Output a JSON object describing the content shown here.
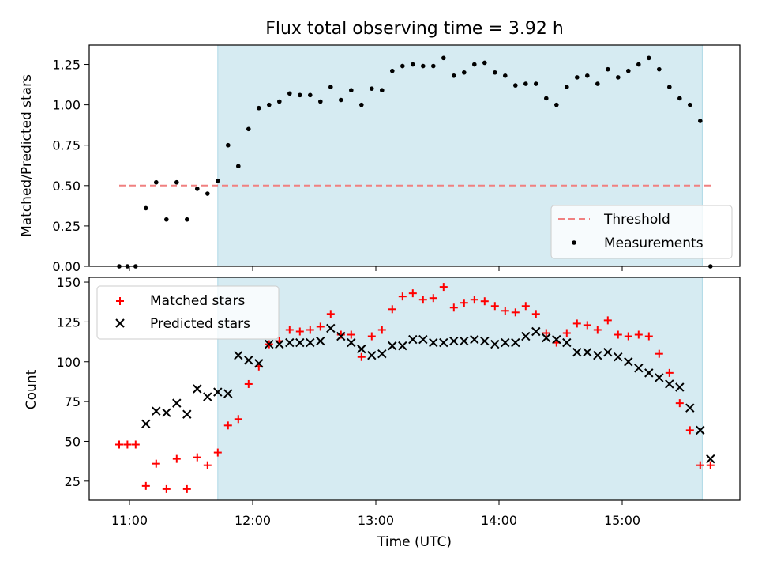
{
  "chart_data": [
    {
      "type": "scatter",
      "title": "Flux total observing time = 3.92 h",
      "xlabel": "",
      "ylabel": "Matched/Predicted stars",
      "ylim": [
        0,
        1.37
      ],
      "yticks": [
        "0.00",
        "0.25",
        "0.50",
        "0.75",
        "1.00",
        "1.25"
      ],
      "legend_position": "lower-right",
      "shaded_interval": [
        "11:43",
        "15:39"
      ],
      "threshold": {
        "name": "Threshold",
        "value": 0.5,
        "x_start": "10:55",
        "x_end": "15:45",
        "color": "#f08080"
      },
      "series": [
        {
          "name": "Measurements",
          "color": "#000000",
          "x": [
            "10:55",
            "10:59",
            "11:03",
            "11:08",
            "11:13",
            "11:18",
            "11:23",
            "11:28",
            "11:33",
            "11:38",
            "11:43",
            "11:48",
            "11:53",
            "11:58",
            "12:03",
            "12:08",
            "12:13",
            "12:18",
            "12:23",
            "12:28",
            "12:33",
            "12:38",
            "12:43",
            "12:48",
            "12:53",
            "12:58",
            "13:03",
            "13:08",
            "13:13",
            "13:18",
            "13:23",
            "13:28",
            "13:33",
            "13:38",
            "13:43",
            "13:48",
            "13:53",
            "13:58",
            "14:03",
            "14:08",
            "14:13",
            "14:18",
            "14:23",
            "14:28",
            "14:33",
            "14:38",
            "14:43",
            "14:48",
            "14:53",
            "14:58",
            "15:03",
            "15:08",
            "15:13",
            "15:18",
            "15:23",
            "15:28",
            "15:33",
            "15:38",
            "15:43"
          ],
          "y": [
            0.0,
            0.0,
            0.0,
            0.36,
            0.52,
            0.29,
            0.52,
            0.29,
            0.48,
            0.45,
            0.53,
            0.75,
            0.62,
            0.85,
            0.98,
            1.0,
            1.02,
            1.07,
            1.06,
            1.06,
            1.02,
            1.11,
            1.03,
            1.09,
            1.0,
            1.1,
            1.09,
            1.21,
            1.24,
            1.25,
            1.24,
            1.24,
            1.29,
            1.18,
            1.2,
            1.25,
            1.26,
            1.2,
            1.18,
            1.12,
            1.13,
            1.13,
            1.04,
            1.0,
            1.11,
            1.17,
            1.18,
            1.13,
            1.22,
            1.17,
            1.21,
            1.25,
            1.29,
            1.22,
            1.11,
            1.04,
            1.0,
            0.9,
            0.0
          ]
        }
      ]
    },
    {
      "type": "scatter",
      "title": "",
      "xlabel": "Time (UTC)",
      "ylabel": "Count",
      "ylim": [
        13,
        153
      ],
      "yticks": [
        "25",
        "50",
        "75",
        "100",
        "125",
        "150"
      ],
      "xticks": [
        "11:00",
        "12:00",
        "13:00",
        "14:00",
        "15:00"
      ],
      "legend_position": "upper-left",
      "shaded_interval": [
        "11:43",
        "15:39"
      ],
      "series": [
        {
          "name": "Matched stars",
          "marker": "plus",
          "color": "#ff0000",
          "x": [
            "10:55",
            "10:59",
            "11:03",
            "11:08",
            "11:13",
            "11:18",
            "11:23",
            "11:28",
            "11:33",
            "11:38",
            "11:43",
            "11:48",
            "11:53",
            "11:58",
            "12:03",
            "12:08",
            "12:13",
            "12:18",
            "12:23",
            "12:28",
            "12:33",
            "12:38",
            "12:43",
            "12:48",
            "12:53",
            "12:58",
            "13:03",
            "13:08",
            "13:13",
            "13:18",
            "13:23",
            "13:28",
            "13:33",
            "13:38",
            "13:43",
            "13:48",
            "13:53",
            "13:58",
            "14:03",
            "14:08",
            "14:13",
            "14:18",
            "14:23",
            "14:28",
            "14:33",
            "14:38",
            "14:43",
            "14:48",
            "14:53",
            "14:58",
            "15:03",
            "15:08",
            "15:13",
            "15:18",
            "15:23",
            "15:28",
            "15:33",
            "15:38",
            "15:43"
          ],
          "y": [
            48,
            48,
            48,
            22,
            36,
            20,
            39,
            20,
            40,
            35,
            43,
            60,
            64,
            86,
            97,
            111,
            113,
            120,
            119,
            120,
            122,
            130,
            117,
            117,
            103,
            116,
            120,
            133,
            141,
            143,
            139,
            140,
            147,
            134,
            137,
            139,
            138,
            135,
            132,
            131,
            135,
            130,
            118,
            112,
            118,
            124,
            123,
            120,
            126,
            117,
            116,
            117,
            116,
            105,
            93,
            74,
            57,
            35,
            35
          ]
        },
        {
          "name": "Predicted stars",
          "marker": "x",
          "color": "#000000",
          "x": [
            "11:08",
            "11:13",
            "11:18",
            "11:23",
            "11:28",
            "11:33",
            "11:38",
            "11:43",
            "11:48",
            "11:53",
            "11:58",
            "12:03",
            "12:08",
            "12:13",
            "12:18",
            "12:23",
            "12:28",
            "12:33",
            "12:38",
            "12:43",
            "12:48",
            "12:53",
            "12:58",
            "13:03",
            "13:08",
            "13:13",
            "13:18",
            "13:23",
            "13:28",
            "13:33",
            "13:38",
            "13:43",
            "13:48",
            "13:53",
            "13:58",
            "14:03",
            "14:08",
            "14:13",
            "14:18",
            "14:23",
            "14:28",
            "14:33",
            "14:38",
            "14:43",
            "14:48",
            "14:53",
            "14:58",
            "15:03",
            "15:08",
            "15:13",
            "15:18",
            "15:23",
            "15:28",
            "15:33",
            "15:38"
          ],
          "y": [
            61,
            69,
            68,
            74,
            67,
            83,
            78,
            81,
            80,
            104,
            101,
            99,
            111,
            111,
            112,
            112,
            112,
            113,
            121,
            116,
            112,
            108,
            104,
            105,
            110,
            110,
            114,
            114,
            112,
            112,
            113,
            113,
            114,
            113,
            111,
            112,
            112,
            116,
            119,
            115,
            114,
            112,
            106,
            106,
            104,
            106,
            103,
            100,
            96,
            93,
            90,
            86,
            84,
            71,
            57
          ]
        },
        {
          "name": "",
          "marker": "x",
          "color": "#000000",
          "x": [
            "15:43"
          ],
          "y": [
            39
          ]
        }
      ]
    }
  ]
}
